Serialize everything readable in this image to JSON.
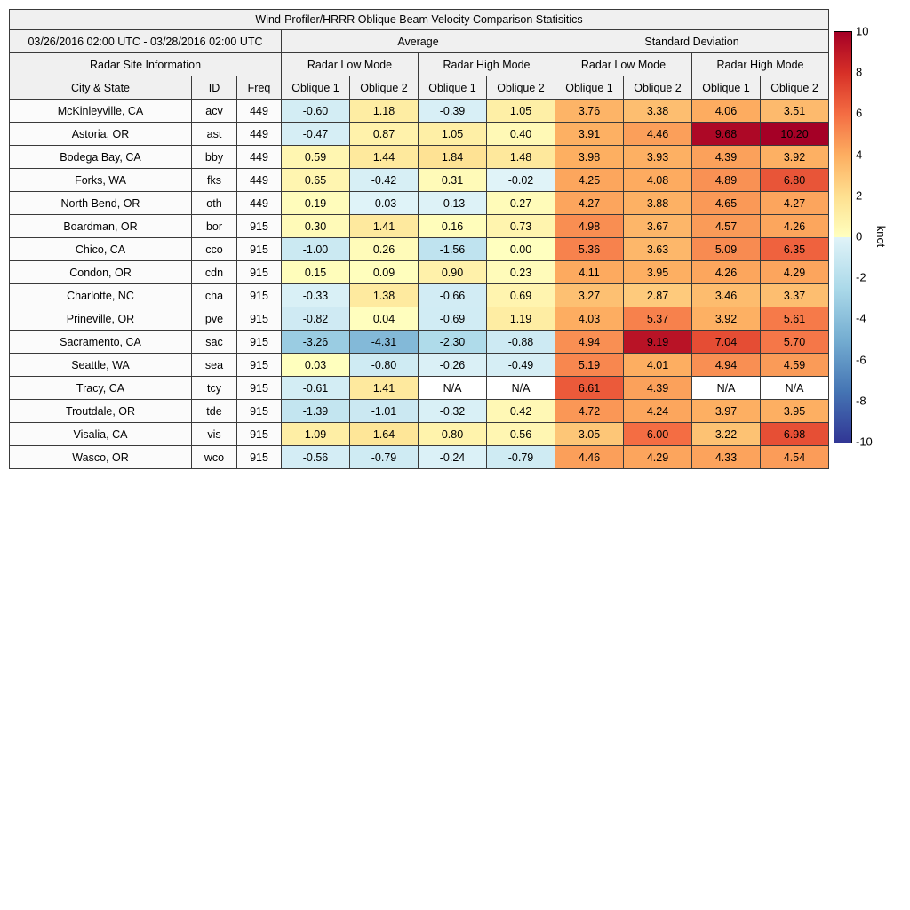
{
  "figure": {
    "title": "Wind-Profiler/HRRR Oblique Beam Velocity Comparison Statisitics",
    "date_range": "03/26/2016 02:00 UTC - 03/28/2016 02:00 UTC",
    "groups": {
      "average": "Average",
      "std": "Standard Deviation"
    },
    "site_info": "Radar Site Information",
    "mode_low": "Radar Low Mode",
    "mode_high": "Radar High Mode",
    "columns": {
      "city": "City & State",
      "id": "ID",
      "freq": "Freq",
      "oblique1": "Oblique 1",
      "oblique2": "Oblique 2"
    },
    "na_text": "N/A"
  },
  "colorbar": {
    "label": "knot",
    "min": -10,
    "max": 10,
    "ticks": [
      "10",
      "8",
      "6",
      "4",
      "2",
      "0",
      "-2",
      "-4",
      "-6",
      "-8",
      "-10"
    ],
    "colormap": {
      "positive": [
        [
          0,
          "#ffffbf"
        ],
        [
          2,
          "#fee090"
        ],
        [
          4,
          "#fdae61"
        ],
        [
          6,
          "#f46d43"
        ],
        [
          8,
          "#d73027"
        ],
        [
          10,
          "#a50026"
        ]
      ],
      "negative": [
        [
          -10,
          "#313695"
        ],
        [
          -7.5,
          "#4575b4"
        ],
        [
          -5,
          "#74add1"
        ],
        [
          -2.5,
          "#abd9e9"
        ],
        [
          0,
          "#e0f3f8"
        ]
      ],
      "na_color": "#ffffff"
    }
  },
  "chart_data": {
    "type": "heatmap",
    "title": "Wind-Profiler/HRRR Oblique Beam Velocity Comparison Statisitics",
    "unit": "knot",
    "value_range": [
      -10,
      10
    ],
    "value_columns": [
      "Average Radar Low Mode Oblique 1",
      "Average Radar Low Mode Oblique 2",
      "Average Radar High Mode Oblique 1",
      "Average Radar High Mode Oblique 2",
      "Standard Deviation Radar Low Mode Oblique 1",
      "Standard Deviation Radar Low Mode Oblique 2",
      "Standard Deviation Radar High Mode Oblique 1",
      "Standard Deviation Radar High Mode Oblique 2"
    ],
    "rows": [
      {
        "city": "McKinleyville, CA",
        "id": "acv",
        "freq": "449",
        "values": [
          "-0.60",
          "1.18",
          "-0.39",
          "1.05",
          "3.76",
          "3.38",
          "4.06",
          "3.51"
        ]
      },
      {
        "city": "Astoria, OR",
        "id": "ast",
        "freq": "449",
        "values": [
          "-0.47",
          "0.87",
          "1.05",
          "0.40",
          "3.91",
          "4.46",
          "9.68",
          "10.20"
        ]
      },
      {
        "city": "Bodega Bay, CA",
        "id": "bby",
        "freq": "449",
        "values": [
          "0.59",
          "1.44",
          "1.84",
          "1.48",
          "3.98",
          "3.93",
          "4.39",
          "3.92"
        ]
      },
      {
        "city": "Forks, WA",
        "id": "fks",
        "freq": "449",
        "values": [
          "0.65",
          "-0.42",
          "0.31",
          "-0.02",
          "4.25",
          "4.08",
          "4.89",
          "6.80"
        ]
      },
      {
        "city": "North Bend, OR",
        "id": "oth",
        "freq": "449",
        "values": [
          "0.19",
          "-0.03",
          "-0.13",
          "0.27",
          "4.27",
          "3.88",
          "4.65",
          "4.27"
        ]
      },
      {
        "city": "Boardman, OR",
        "id": "bor",
        "freq": "915",
        "values": [
          "0.30",
          "1.41",
          "0.16",
          "0.73",
          "4.98",
          "3.67",
          "4.57",
          "4.26"
        ]
      },
      {
        "city": "Chico, CA",
        "id": "cco",
        "freq": "915",
        "values": [
          "-1.00",
          "0.26",
          "-1.56",
          "0.00",
          "5.36",
          "3.63",
          "5.09",
          "6.35"
        ]
      },
      {
        "city": "Condon, OR",
        "id": "cdn",
        "freq": "915",
        "values": [
          "0.15",
          "0.09",
          "0.90",
          "0.23",
          "4.11",
          "3.95",
          "4.26",
          "4.29"
        ]
      },
      {
        "city": "Charlotte, NC",
        "id": "cha",
        "freq": "915",
        "values": [
          "-0.33",
          "1.38",
          "-0.66",
          "0.69",
          "3.27",
          "2.87",
          "3.46",
          "3.37"
        ]
      },
      {
        "city": "Prineville, OR",
        "id": "pve",
        "freq": "915",
        "values": [
          "-0.82",
          "0.04",
          "-0.69",
          "1.19",
          "4.03",
          "5.37",
          "3.92",
          "5.61"
        ]
      },
      {
        "city": "Sacramento, CA",
        "id": "sac",
        "freq": "915",
        "values": [
          "-3.26",
          "-4.31",
          "-2.30",
          "-0.88",
          "4.94",
          "9.19",
          "7.04",
          "5.70"
        ]
      },
      {
        "city": "Seattle, WA",
        "id": "sea",
        "freq": "915",
        "values": [
          "0.03",
          "-0.80",
          "-0.26",
          "-0.49",
          "5.19",
          "4.01",
          "4.94",
          "4.59"
        ]
      },
      {
        "city": "Tracy, CA",
        "id": "tcy",
        "freq": "915",
        "values": [
          "-0.61",
          "1.41",
          "N/A",
          "N/A",
          "6.61",
          "4.39",
          "N/A",
          "N/A"
        ]
      },
      {
        "city": "Troutdale, OR",
        "id": "tde",
        "freq": "915",
        "values": [
          "-1.39",
          "-1.01",
          "-0.32",
          "0.42",
          "4.72",
          "4.24",
          "3.97",
          "3.95"
        ]
      },
      {
        "city": "Visalia, CA",
        "id": "vis",
        "freq": "915",
        "values": [
          "1.09",
          "1.64",
          "0.80",
          "0.56",
          "3.05",
          "6.00",
          "3.22",
          "6.98"
        ]
      },
      {
        "city": "Wasco, OR",
        "id": "wco",
        "freq": "915",
        "values": [
          "-0.56",
          "-0.79",
          "-0.24",
          "-0.79",
          "4.46",
          "4.29",
          "4.33",
          "4.54"
        ]
      }
    ]
  }
}
